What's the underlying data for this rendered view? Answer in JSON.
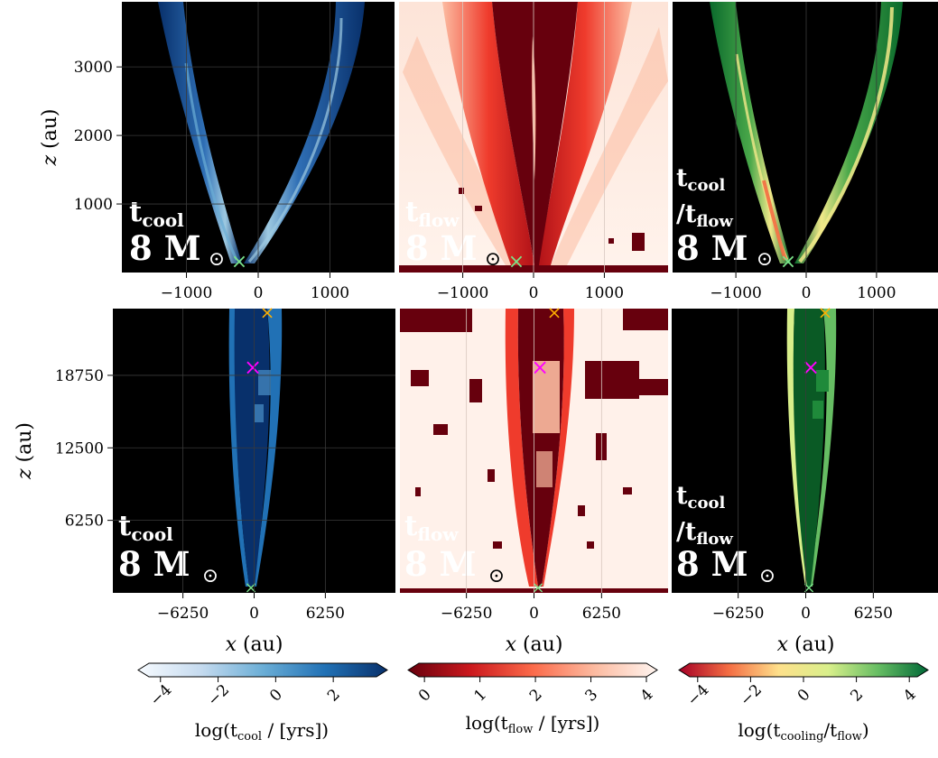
{
  "figure": {
    "mass_label": "8 M",
    "sun_symbol": "⊙",
    "labels": {
      "cool": "t",
      "cool_sub": "cool",
      "flow": "t",
      "flow_sub": "flow",
      "ratio_top": "t",
      "ratio_top_sub": "cool",
      "ratio_bot": "/t",
      "ratio_bot_sub": "flow"
    },
    "markers": {
      "green_x": "×",
      "magenta_x": "×",
      "orange_x": "×"
    },
    "colors": {
      "background": "#000000",
      "blues": "#08306b",
      "reds": "#67000d",
      "greens": "#00441b",
      "marker_green": "#7be38a",
      "marker_magenta": "#ff00ff",
      "marker_orange": "#ffb000"
    }
  },
  "chart_data": [
    {
      "type": "heatmap",
      "panel": "top-left",
      "quantity": "t_cool",
      "xlabel": "",
      "ylabel": "z (au)",
      "xlim": [
        -1900,
        1900
      ],
      "ylim": [
        0,
        3950
      ],
      "xticks": [
        -1000,
        0,
        1000
      ],
      "xtick_labels": [
        "−1000",
        "0",
        "1000"
      ],
      "yticks": [
        1000,
        2000,
        3000
      ],
      "ytick_labels": [
        "1000",
        "2000",
        "3000"
      ],
      "colormap": "Blues"
    },
    {
      "type": "heatmap",
      "panel": "top-middle",
      "quantity": "t_flow",
      "xlim": [
        -1900,
        1900
      ],
      "ylim": [
        0,
        3950
      ],
      "xticks": [
        -1000,
        0,
        1000
      ],
      "xtick_labels": [
        "−1000",
        "0",
        "1000"
      ],
      "colormap": "Reds_r"
    },
    {
      "type": "heatmap",
      "panel": "top-right",
      "quantity": "t_cool/t_flow",
      "xlim": [
        -1900,
        1900
      ],
      "ylim": [
        0,
        3950
      ],
      "xticks": [
        -1000,
        0,
        1000
      ],
      "xtick_labels": [
        "−1000",
        "0",
        "1000"
      ],
      "colormap": "RdYlGn"
    },
    {
      "type": "heatmap",
      "panel": "bottom-left",
      "quantity": "t_cool",
      "xlabel": "x (au)",
      "ylabel": "z (au)",
      "xlim": [
        -12400,
        12400
      ],
      "ylim": [
        0,
        24500
      ],
      "xticks": [
        -6250,
        0,
        6250
      ],
      "xtick_labels": [
        "−6250",
        "0",
        "6250"
      ],
      "yticks": [
        6250,
        12500,
        18750
      ],
      "ytick_labels": [
        "6250",
        "12500",
        "18750"
      ],
      "colormap": "Blues"
    },
    {
      "type": "heatmap",
      "panel": "bottom-middle",
      "quantity": "t_flow",
      "xlabel": "x (au)",
      "xlim": [
        -12400,
        12400
      ],
      "ylim": [
        0,
        24500
      ],
      "xticks": [
        -6250,
        0,
        6250
      ],
      "xtick_labels": [
        "−6250",
        "0",
        "6250"
      ],
      "colormap": "Reds_r"
    },
    {
      "type": "heatmap",
      "panel": "bottom-right",
      "quantity": "t_cool/t_flow",
      "xlabel": "x (au)",
      "xlim": [
        -12400,
        12400
      ],
      "ylim": [
        0,
        24500
      ],
      "xticks": [
        -6250,
        0,
        6250
      ],
      "xtick_labels": [
        "−6250",
        "0",
        "6250"
      ],
      "colormap": "RdYlGn"
    },
    {
      "type": "colorbar",
      "name": "cool",
      "label": "log(t",
      "label_sub": "cool",
      "label_tail": " / [yrs])",
      "range": [
        -4.4,
        3.5
      ],
      "ticks": [
        -4,
        -2,
        0,
        2
      ],
      "tick_labels": [
        "−4",
        "−2",
        "0",
        "2"
      ],
      "stops": [
        "#f7fbff",
        "#c6dbef",
        "#6baed6",
        "#2171b5",
        "#08306b"
      ]
    },
    {
      "type": "colorbar",
      "name": "flow",
      "label": "log(t",
      "label_sub": "flow",
      "label_tail": " / [yrs])",
      "range": [
        -0.1,
        4.0
      ],
      "ticks": [
        0,
        1,
        2,
        3,
        4
      ],
      "tick_labels": [
        "0",
        "1",
        "2",
        "3",
        "4"
      ],
      "stops": [
        "#67000d",
        "#cb181d",
        "#fb6a4a",
        "#fcbba1",
        "#fff5f0"
      ]
    },
    {
      "type": "colorbar",
      "name": "ratio",
      "label": "log(t",
      "label_sub": "cooling",
      "label_tail": "/t",
      "label_sub2": "flow",
      "label_end": ")",
      "range": [
        -4.3,
        4.3
      ],
      "ticks": [
        -4,
        -2,
        0,
        2,
        4
      ],
      "tick_labels": [
        "−4",
        "−2",
        "0",
        "2",
        "4"
      ],
      "stops": [
        "#a50026",
        "#f46d43",
        "#fee08b",
        "#d9ef8b",
        "#66bd63",
        "#006837"
      ]
    }
  ]
}
